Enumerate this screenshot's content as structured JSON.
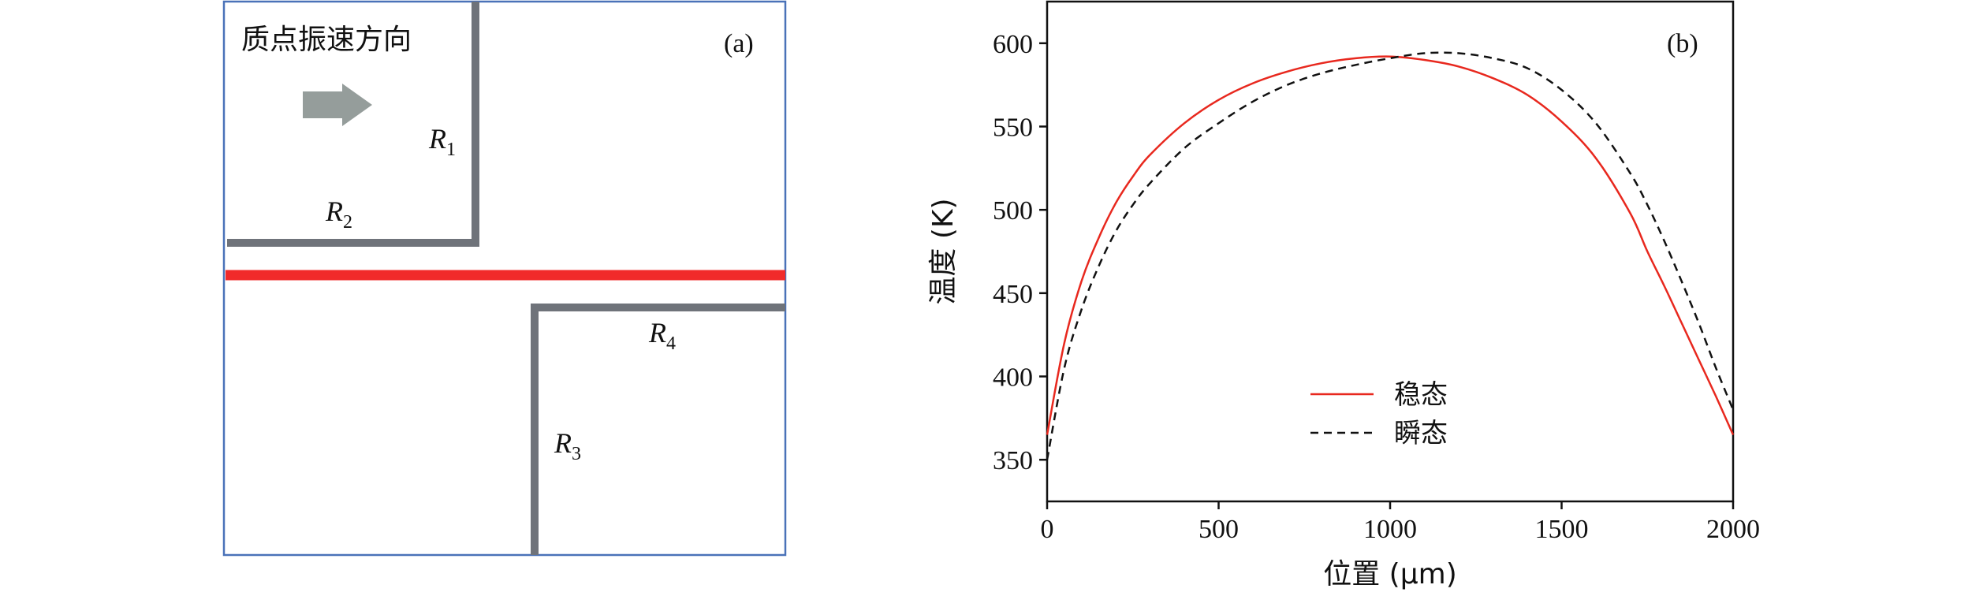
{
  "panel_a": {
    "tag": "(a)",
    "direction_label": "质点振速方向",
    "labels": [
      {
        "base": "R",
        "sub": "1"
      },
      {
        "base": "R",
        "sub": "2"
      },
      {
        "base": "R",
        "sub": "3"
      },
      {
        "base": "R",
        "sub": "4"
      }
    ],
    "colors": {
      "frame": "#4a72b8",
      "channel": "#6f737a",
      "centerline": "#f12a2a",
      "arrow": "#959d9b"
    },
    "icon": "right-arrow-icon"
  },
  "chart_data": {
    "type": "line",
    "tag": "(b)",
    "xlabel": "位置 (μm)",
    "ylabel": "温度 (K)",
    "xlim": [
      0,
      2000
    ],
    "ylim": [
      325,
      625
    ],
    "xticks": [
      0,
      500,
      1000,
      1500,
      2000
    ],
    "yticks": [
      350,
      400,
      450,
      500,
      550,
      600
    ],
    "grid": false,
    "legend_position": "lower-center",
    "series": [
      {
        "name": "稳态",
        "color": "#e8281e",
        "dash": "solid",
        "x": [
          0,
          50,
          100,
          150,
          200,
          250,
          300,
          400,
          500,
          600,
          700,
          800,
          900,
          1000,
          1100,
          1200,
          1300,
          1400,
          1500,
          1600,
          1700,
          1750,
          1800,
          1850,
          1900,
          1950,
          2000
        ],
        "y": [
          365,
          420,
          457,
          483,
          504,
          520,
          533,
          552,
          566,
          576,
          583,
          588,
          591,
          592,
          590,
          586,
          579,
          569,
          553,
          531,
          498,
          475,
          454,
          432,
          410,
          388,
          365
        ]
      },
      {
        "name": "瞬态",
        "color": "#111111",
        "dash": "dashed",
        "x": [
          0,
          50,
          100,
          150,
          200,
          250,
          300,
          400,
          500,
          600,
          700,
          800,
          900,
          1000,
          1100,
          1200,
          1300,
          1400,
          1500,
          1600,
          1700,
          1750,
          1800,
          1850,
          1900,
          1950,
          2000
        ],
        "y": [
          350,
          405,
          440,
          466,
          487,
          503,
          516,
          537,
          552,
          565,
          575,
          582,
          587,
          591,
          594,
          594,
          591,
          585,
          572,
          552,
          522,
          503,
          481,
          457,
          432,
          405,
          380
        ]
      }
    ]
  }
}
